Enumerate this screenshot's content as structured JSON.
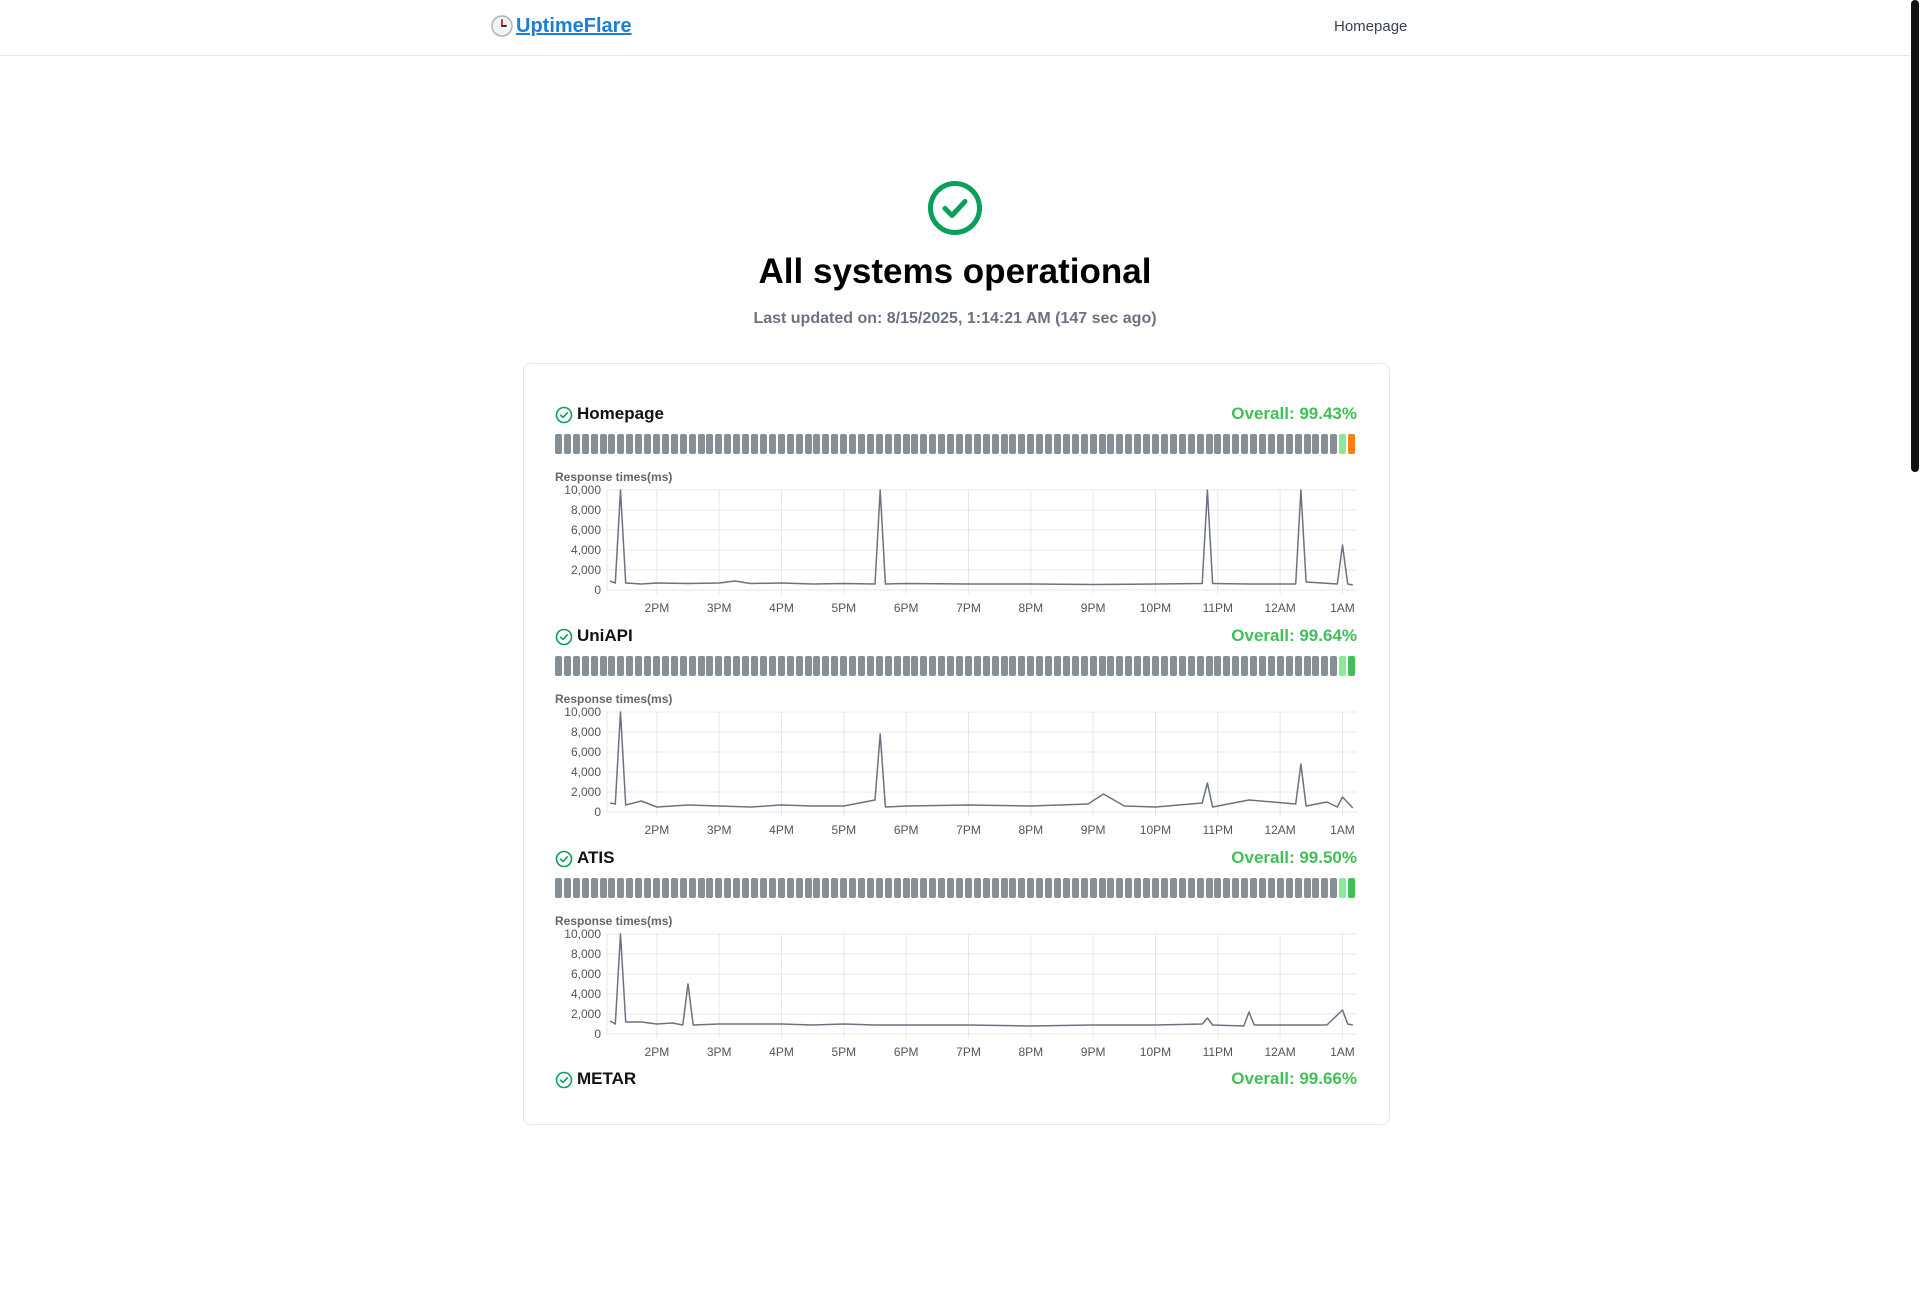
{
  "header": {
    "brand_text": "UptimeFlare",
    "brand_icon": "clock-emoji-icon",
    "nav_link": "Homepage"
  },
  "hero": {
    "status_icon": "check-circle-icon",
    "title": "All systems operational",
    "last_updated": "Last updated on: 8/15/2025, 1:14:21 AM (147 sec ago)"
  },
  "colors": {
    "operational_green": "#0b9f5b",
    "overall_text": "#40c057",
    "bar_no_data": "#868e96",
    "bar_full_up": "#40c057",
    "bar_light_green": "#8ce99a",
    "bar_partial": "#fd7e14",
    "line": "#6b7280"
  },
  "monitors": [
    {
      "name": "Homepage",
      "overall": "Overall: 99.43%",
      "bar_count": 90,
      "bar_colors_last": [
        "#8ce99a",
        "#fd7e14"
      ],
      "chart_label": "Response times(ms)"
    },
    {
      "name": "UniAPI",
      "overall": "Overall: 99.64%",
      "bar_count": 90,
      "bar_colors_last": [
        "#8ce99a",
        "#40c057"
      ],
      "chart_label": "Response times(ms)"
    },
    {
      "name": "ATIS",
      "overall": "Overall: 99.50%",
      "bar_count": 90,
      "bar_colors_last": [
        "#8ce99a",
        "#40c057"
      ],
      "chart_label": "Response times(ms)"
    },
    {
      "name": "METAR",
      "overall": "Overall: 99.66%"
    }
  ],
  "chart_data": [
    {
      "type": "line",
      "title": "Response times(ms)",
      "x_ticks": [
        "2PM",
        "3PM",
        "4PM",
        "5PM",
        "6PM",
        "7PM",
        "8PM",
        "9PM",
        "10PM",
        "11PM",
        "12AM",
        "1AM"
      ],
      "y_ticks": [
        "10,000",
        "8,000",
        "6,000",
        "4,000",
        "2,000",
        "0"
      ],
      "ylim": [
        0,
        10000
      ],
      "series": [
        {
          "x": [
            "1:15PM",
            "1:20PM",
            "1:25PM",
            "1:30PM",
            "1:45PM",
            "2:00PM",
            "2:30PM",
            "3:00PM",
            "3:15PM",
            "3:30PM",
            "4:00PM",
            "4:30PM",
            "5:00PM",
            "5:30PM",
            "5:35PM",
            "5:40PM",
            "6:00PM",
            "7:00PM",
            "8:00PM",
            "9:00PM",
            "10:00PM",
            "10:45PM",
            "10:50PM",
            "10:55PM",
            "11:30PM",
            "12:15AM",
            "12:20AM",
            "12:25AM",
            "12:40AM",
            "12:55AM",
            "1:00AM",
            "1:05AM",
            "1:10AM"
          ],
          "values": [
            900,
            700,
            10000,
            700,
            600,
            700,
            650,
            700,
            900,
            650,
            700,
            600,
            650,
            600,
            10000,
            600,
            650,
            600,
            600,
            550,
            600,
            650,
            10000,
            650,
            600,
            600,
            10000,
            800,
            700,
            600,
            4500,
            600,
            500
          ]
        }
      ],
      "grid": true
    },
    {
      "type": "line",
      "title": "Response times(ms)",
      "x_ticks": [
        "2PM",
        "3PM",
        "4PM",
        "5PM",
        "6PM",
        "7PM",
        "8PM",
        "9PM",
        "10PM",
        "11PM",
        "12AM",
        "1AM"
      ],
      "y_ticks": [
        "10,000",
        "8,000",
        "6,000",
        "4,000",
        "2,000",
        "0"
      ],
      "ylim": [
        0,
        10000
      ],
      "series": [
        {
          "x": [
            "1:15PM",
            "1:20PM",
            "1:25PM",
            "1:30PM",
            "1:45PM",
            "2:00PM",
            "2:30PM",
            "3:00PM",
            "3:30PM",
            "4:00PM",
            "4:30PM",
            "5:00PM",
            "5:30PM",
            "5:35PM",
            "5:40PM",
            "6:00PM",
            "7:00PM",
            "8:00PM",
            "8:55PM",
            "9:10PM",
            "9:30PM",
            "10:00PM",
            "10:45PM",
            "10:50PM",
            "10:55PM",
            "11:30PM",
            "12:15AM",
            "12:20AM",
            "12:25AM",
            "12:45AM",
            "12:55AM",
            "1:00AM",
            "1:10AM"
          ],
          "values": [
            900,
            800,
            10000,
            700,
            1100,
            500,
            700,
            600,
            500,
            700,
            600,
            600,
            1200,
            7800,
            500,
            600,
            700,
            600,
            800,
            1800,
            600,
            500,
            900,
            2900,
            500,
            1200,
            800,
            4800,
            600,
            1000,
            500,
            1500,
            400
          ]
        }
      ],
      "grid": true
    },
    {
      "type": "line",
      "title": "Response times(ms)",
      "x_ticks": [
        "2PM",
        "3PM",
        "4PM",
        "5PM",
        "6PM",
        "7PM",
        "8PM",
        "9PM",
        "10PM",
        "11PM",
        "12AM",
        "1AM"
      ],
      "y_ticks": [
        "10,000",
        "8,000",
        "6,000",
        "4,000",
        "2,000",
        "0"
      ],
      "ylim": [
        0,
        10000
      ],
      "series": [
        {
          "x": [
            "1:15PM",
            "1:20PM",
            "1:25PM",
            "1:30PM",
            "1:45PM",
            "2:00PM",
            "2:15PM",
            "2:25PM",
            "2:30PM",
            "2:35PM",
            "3:00PM",
            "3:30PM",
            "4:00PM",
            "4:30PM",
            "5:00PM",
            "5:30PM",
            "6:00PM",
            "7:00PM",
            "8:00PM",
            "9:00PM",
            "10:00PM",
            "10:45PM",
            "10:50PM",
            "10:55PM",
            "11:25PM",
            "11:30PM",
            "11:35PM",
            "12:15AM",
            "12:45AM",
            "1:00AM",
            "1:05AM",
            "1:10AM"
          ],
          "values": [
            1300,
            1000,
            10000,
            1200,
            1200,
            1000,
            1100,
            900,
            5000,
            900,
            1000,
            1000,
            1000,
            900,
            1000,
            900,
            900,
            900,
            800,
            900,
            900,
            1000,
            1600,
            900,
            800,
            2200,
            900,
            900,
            900,
            2400,
            1000,
            900
          ]
        }
      ],
      "grid": true
    }
  ]
}
